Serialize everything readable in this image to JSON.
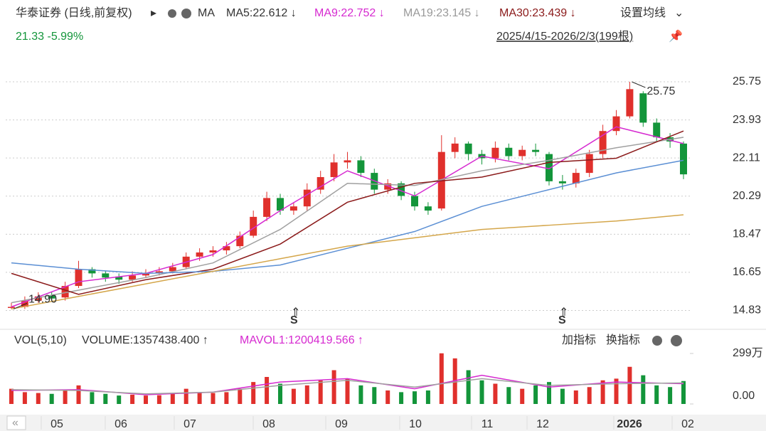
{
  "header": {
    "title": "华泰证券 (日线,前复权)",
    "ma": "MA",
    "ma5": "MA5:22.612 ↓",
    "ma9": "MA9:22.752 ↓",
    "ma19": "MA19:23.145 ↓",
    "ma30": "MA30:23.439 ↓",
    "settings": "设置均线",
    "quote": "21.33 -5.99%",
    "range": "2025/4/15-2026/2/3(199根)"
  },
  "volume_header": {
    "name": "VOL(5,10)",
    "volume": "VOLUME:1357438.400 ↑",
    "mavol": "MAVOL1:1200419.566 ↑",
    "add": "加指标",
    "switch": "换指标"
  },
  "x_labels": [
    "05",
    "06",
    "07",
    "08",
    "09",
    "10",
    "11",
    "12",
    "2026",
    "02"
  ],
  "markers": [
    "S",
    "S"
  ],
  "chart_data": {
    "type": "candlestick",
    "ylim": [
      14.1,
      26.6
    ],
    "yticks": [
      25.75,
      23.93,
      22.11,
      20.29,
      18.47,
      16.65,
      14.83
    ],
    "grid": true,
    "up_color": "#e0302c",
    "down_color": "#13953a",
    "open": [
      14.95,
      15.0,
      15.3,
      15.55,
      15.45,
      16.0,
      16.8,
      16.6,
      16.45,
      16.3,
      16.5,
      16.6,
      16.7,
      16.9,
      17.4,
      17.6,
      17.7,
      17.9,
      18.4,
      19.3,
      20.2,
      19.6,
      19.8,
      20.6,
      21.2,
      21.9,
      22.0,
      21.4,
      20.6,
      20.9,
      20.3,
      19.8,
      19.7,
      22.4,
      22.8,
      22.3,
      22.1,
      22.6,
      22.2,
      22.5,
      22.3,
      21.0,
      20.9,
      21.4,
      22.3,
      23.4,
      24.1,
      25.2,
      23.8,
      23.1,
      22.8
    ],
    "high": [
      15.2,
      15.5,
      15.7,
      15.7,
      16.2,
      17.2,
      16.9,
      16.7,
      16.6,
      16.7,
      16.8,
      16.9,
      17.1,
      17.6,
      17.8,
      17.9,
      18.1,
      18.6,
      19.6,
      20.5,
      20.4,
      20.0,
      20.9,
      21.5,
      22.3,
      22.4,
      22.2,
      21.6,
      21.1,
      21.0,
      20.5,
      20.0,
      23.2,
      23.1,
      22.9,
      22.5,
      22.9,
      22.8,
      22.7,
      22.8,
      22.4,
      21.3,
      21.6,
      22.5,
      23.7,
      24.4,
      25.75,
      25.3,
      24.0,
      23.3,
      22.9
    ],
    "low": [
      14.9,
      14.9,
      15.2,
      15.3,
      15.3,
      15.9,
      16.4,
      16.2,
      16.1,
      16.2,
      16.4,
      16.5,
      16.6,
      16.8,
      17.2,
      17.4,
      17.5,
      17.8,
      18.3,
      19.1,
      19.4,
      19.4,
      19.6,
      20.4,
      21.0,
      21.6,
      21.2,
      20.4,
      20.4,
      20.1,
      19.6,
      19.4,
      19.6,
      22.1,
      22.0,
      21.8,
      21.9,
      22.0,
      22.0,
      22.2,
      20.8,
      20.6,
      20.7,
      21.2,
      22.1,
      23.2,
      24.0,
      23.6,
      22.9,
      22.6,
      21.1
    ],
    "close": [
      15.0,
      15.3,
      15.5,
      15.4,
      16.0,
      16.8,
      16.6,
      16.4,
      16.3,
      16.5,
      16.6,
      16.7,
      16.9,
      17.4,
      17.6,
      17.7,
      17.9,
      18.4,
      19.3,
      20.2,
      19.6,
      19.8,
      20.6,
      21.2,
      21.9,
      22.0,
      21.4,
      20.6,
      20.9,
      20.3,
      19.8,
      19.6,
      22.4,
      22.8,
      22.3,
      22.1,
      22.6,
      22.2,
      22.5,
      22.4,
      21.0,
      20.9,
      21.4,
      22.3,
      23.4,
      24.1,
      25.4,
      23.8,
      23.1,
      22.9,
      21.33
    ],
    "series": [
      {
        "color": "#d62ad0",
        "values": [
          15.0,
          16.2,
          16.6,
          17.5,
          19.6,
          21.5,
          20.3,
          22.2,
          21.6,
          23.6,
          22.8
        ]
      },
      {
        "color": "#a0a0a0",
        "values": [
          15.2,
          15.8,
          16.4,
          17.1,
          18.7,
          20.9,
          20.8,
          21.5,
          22.0,
          22.6,
          23.1
        ]
      },
      {
        "color": "#8b1a1a",
        "values": [
          16.6,
          15.6,
          16.3,
          16.8,
          18.0,
          20.0,
          20.9,
          21.2,
          21.9,
          22.1,
          23.4
        ]
      },
      {
        "color": "#5b8fd4",
        "values": [
          17.1,
          16.8,
          16.6,
          16.7,
          17.0,
          17.8,
          18.6,
          19.8,
          20.6,
          21.4,
          22.0
        ]
      },
      {
        "color": "#d4a64a",
        "values": [
          14.9,
          15.5,
          16.1,
          16.7,
          17.3,
          17.9,
          18.3,
          18.7,
          18.9,
          19.1,
          19.4
        ]
      }
    ],
    "annotations": [
      "25.75",
      "14.90"
    ]
  },
  "volume_data": {
    "type": "bar",
    "ylim": [
      0,
      2990000
    ],
    "yticks": [
      {
        "value": 2990000,
        "label": "299万"
      },
      {
        "value": 0,
        "label": "0.00"
      }
    ],
    "values": [
      900000,
      700000,
      650000,
      600000,
      800000,
      1100000,
      700000,
      600000,
      500000,
      550000,
      500000,
      520000,
      600000,
      900000,
      700000,
      650000,
      700000,
      900000,
      1300000,
      1600000,
      1200000,
      900000,
      1100000,
      1400000,
      2000000,
      1500000,
      1100000,
      1000000,
      800000,
      700000,
      750000,
      800000,
      3000000,
      2700000,
      2000000,
      1400000,
      1200000,
      1000000,
      900000,
      1100000,
      1300000,
      900000,
      800000,
      1000000,
      1400000,
      1500000,
      2200000,
      1700000,
      1100000,
      1000000,
      1357438.4
    ],
    "series": [
      {
        "color": "#d62ad0",
        "values": [
          800000,
          850000,
          550000,
          700000,
          1300000,
          1500000,
          900000,
          1700000,
          1000000,
          1300000,
          1200419.566
        ]
      },
      {
        "color": "#a0a0a0",
        "values": [
          850000,
          800000,
          600000,
          700000,
          1100000,
          1400000,
          1000000,
          1500000,
          1100000,
          1200000,
          1250000
        ]
      }
    ]
  }
}
